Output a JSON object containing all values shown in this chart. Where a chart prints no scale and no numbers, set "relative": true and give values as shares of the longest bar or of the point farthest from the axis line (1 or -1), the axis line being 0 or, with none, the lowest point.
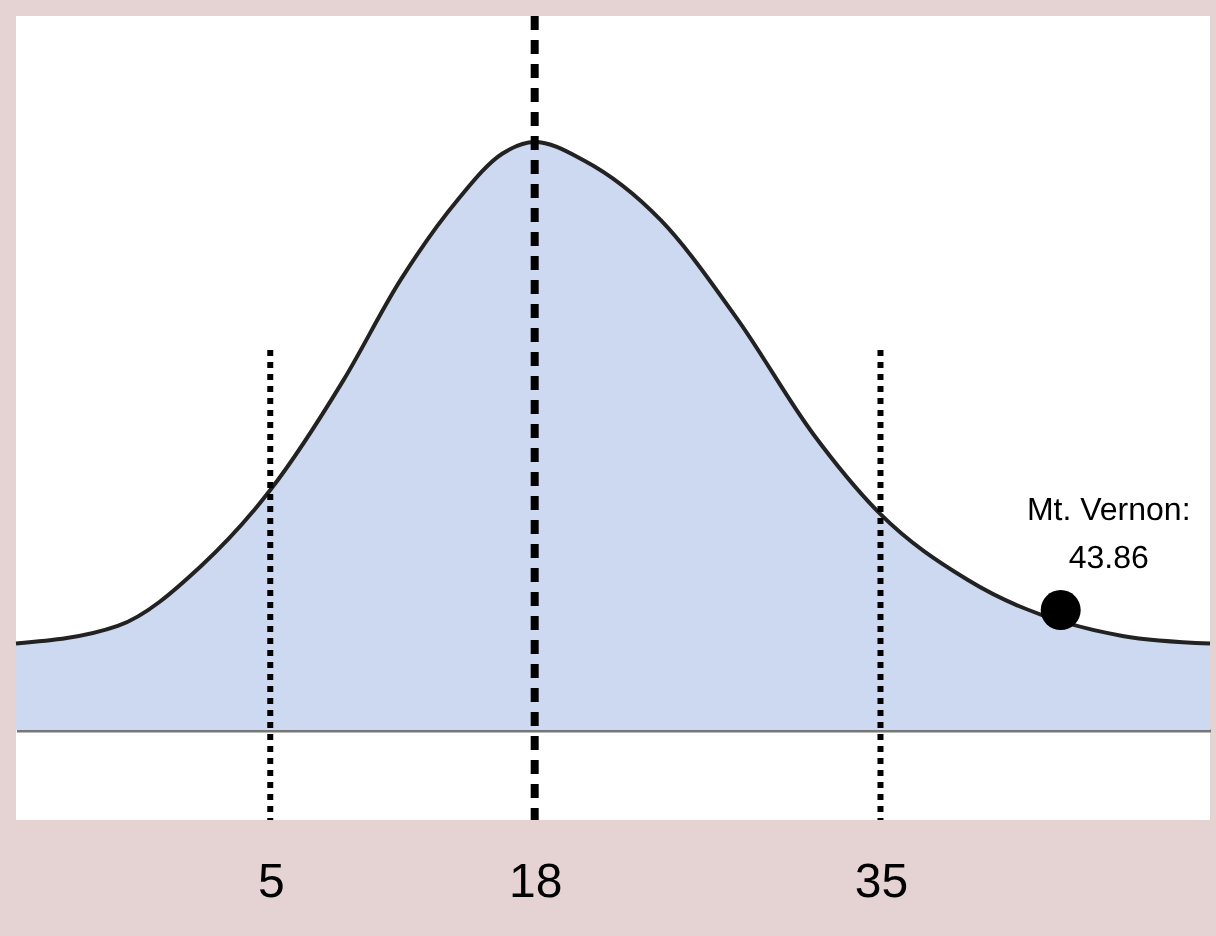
{
  "chart_data": {
    "type": "area",
    "relative": true,
    "xlim": [
      -7.5,
      51.2
    ],
    "xticks": [
      5,
      18,
      35
    ],
    "series": [
      {
        "color": "#cdd9f0",
        "x": [
          -7.5,
          -2.5,
          1.6,
          5,
          8.6,
          11.4,
          14.2,
          16.4,
          18,
          20.4,
          24.2,
          28.0,
          31.7,
          35,
          39.3,
          46.9,
          51.2
        ],
        "values": [
          0.147,
          0.177,
          0.279,
          0.408,
          0.595,
          0.765,
          0.901,
          0.98,
          1.0,
          0.969,
          0.867,
          0.697,
          0.503,
          0.367,
          0.255,
          0.16,
          0.147
        ]
      },
      {
        "type": "scatter",
        "color": "#000000",
        "x": [
          43.86
        ],
        "values": [
          0.204
        ]
      }
    ],
    "ref_lines": [
      {
        "axis": "x",
        "value": 5,
        "line_style": "dotted"
      },
      {
        "axis": "x",
        "value": 18,
        "line_style": "dashed"
      },
      {
        "axis": "x",
        "value": 35,
        "line_style": "dotted"
      }
    ],
    "annotations": [
      {
        "text": "Mt. Vernon:\n43.86",
        "x": 43.86,
        "y": 0.204
      }
    ],
    "grid": false
  }
}
